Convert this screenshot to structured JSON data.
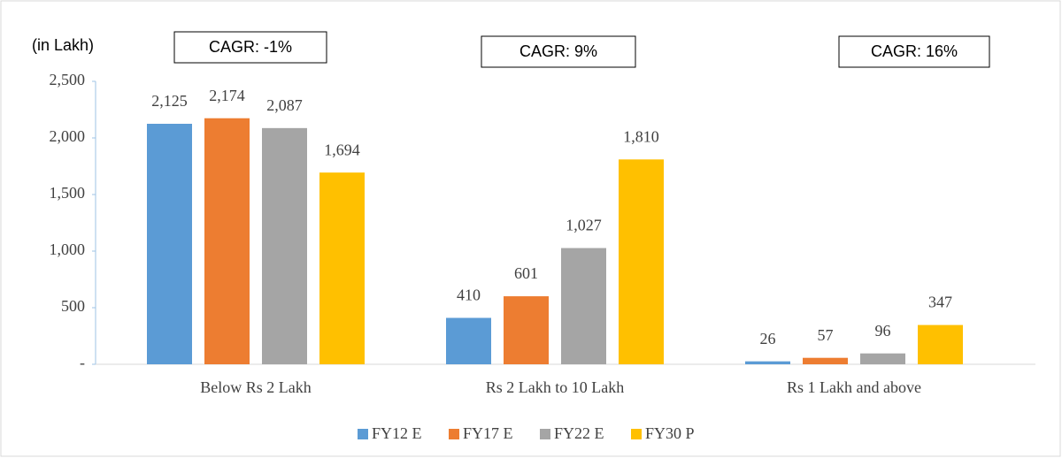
{
  "chart_data": {
    "type": "bar",
    "y_label": "(in Lakh)",
    "annotations": [
      "CAGR: -1%",
      "CAGR: 9%",
      "CAGR: 16%"
    ],
    "categories": [
      "Below Rs 2 Lakh",
      "Rs 2 Lakh to 10 Lakh",
      "Rs 1 Lakh and above"
    ],
    "series": [
      {
        "name": "FY12 E",
        "color": "#5b9bd5",
        "values": [
          2125,
          410,
          26
        ],
        "value_labels": [
          "2,125",
          "410",
          "26"
        ]
      },
      {
        "name": "FY17 E",
        "color": "#ed7d31",
        "values": [
          2174,
          601,
          57
        ],
        "value_labels": [
          "2,174",
          "601",
          "57"
        ]
      },
      {
        "name": "FY22 E",
        "color": "#a5a5a5",
        "values": [
          2087,
          1027,
          96
        ],
        "value_labels": [
          "2,087",
          "1,027",
          "96"
        ]
      },
      {
        "name": "FY30 P",
        "color": "#ffc000",
        "values": [
          1694,
          1810,
          347
        ],
        "value_labels": [
          "1,694",
          "1,810",
          "347"
        ]
      }
    ],
    "ylim": [
      0,
      2500
    ],
    "yticks": [
      {
        "value": 0,
        "label": "-"
      },
      500,
      {
        "value": 1000,
        "label": "1,000"
      },
      {
        "value": 1500,
        "label": "1,500"
      },
      {
        "value": 2000,
        "label": "2,000"
      },
      {
        "value": 2500,
        "label": "2,500"
      }
    ],
    "legend": "bottom"
  }
}
